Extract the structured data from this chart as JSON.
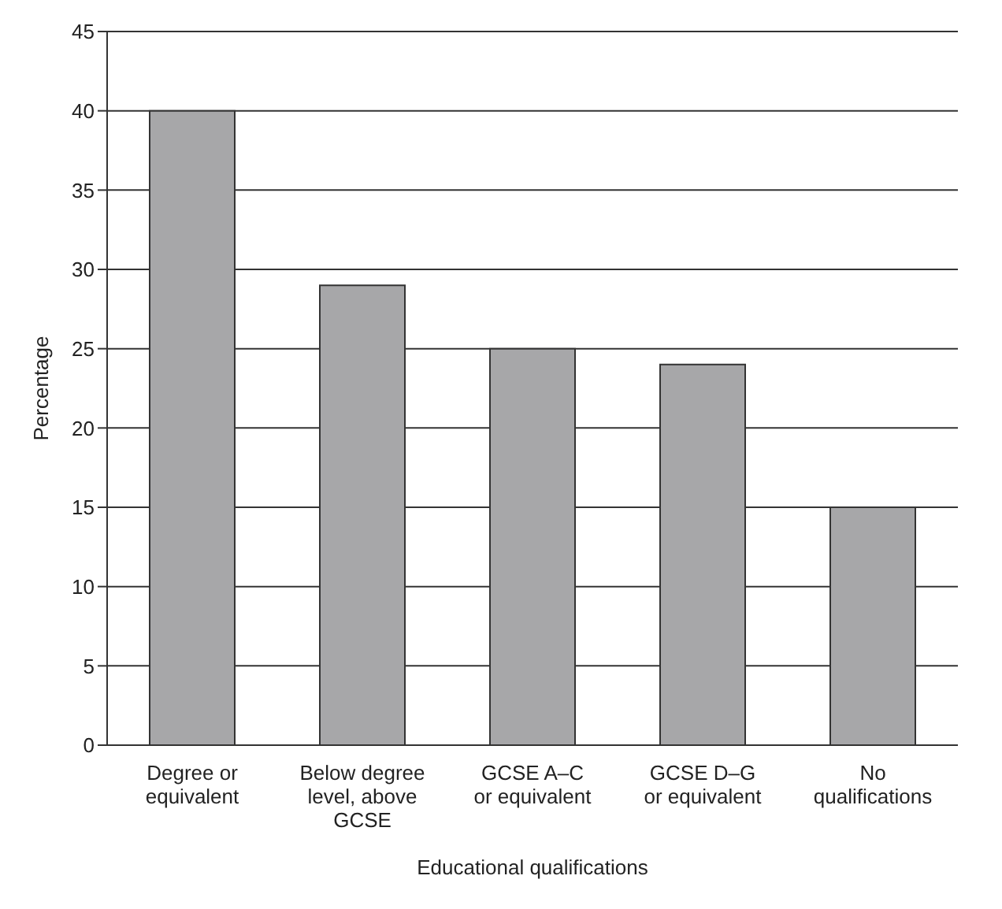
{
  "chart_data": {
    "type": "bar",
    "xlabel": "Educational qualifications",
    "ylabel": "Percentage",
    "categories": [
      "Degree or\nequivalent",
      "Below degree\nlevel, above\nGCSE",
      "GCSE A–C\nor equivalent",
      "GCSE D–G\nor equivalent",
      "No\nqualifications"
    ],
    "values": [
      40,
      29,
      25,
      24,
      15
    ],
    "color": "#a7a7a9",
    "ylim": [
      0,
      45
    ],
    "yticks": [
      0,
      5,
      10,
      15,
      20,
      25,
      30,
      35,
      40,
      45
    ],
    "grid": "y",
    "legend": false
  }
}
